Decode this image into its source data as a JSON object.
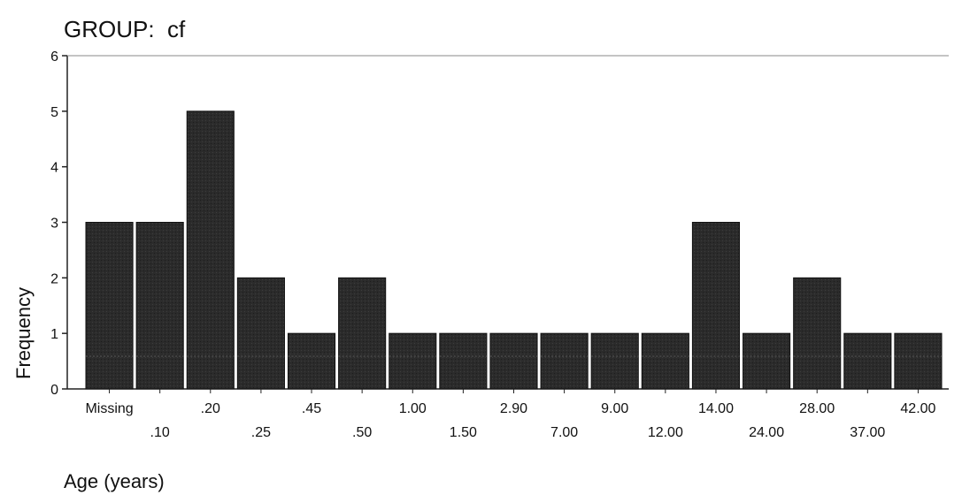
{
  "chart_data": {
    "type": "bar",
    "title": "GROUP:  cf",
    "xlabel": "Age (years)",
    "ylabel": "Frequency",
    "ylim": [
      0,
      6
    ],
    "yticks": [
      0,
      1,
      2,
      3,
      4,
      5,
      6
    ],
    "grid": false,
    "legend": "none",
    "categories": [
      "Missing",
      ".10",
      ".20",
      ".25",
      ".45",
      ".50",
      "1.00",
      "1.50",
      "2.90",
      "7.00",
      "9.00",
      "12.00",
      "14.00",
      "24.00",
      "28.00",
      "37.00",
      "42.00"
    ],
    "values": [
      3,
      3,
      5,
      2,
      1,
      2,
      1,
      1,
      1,
      1,
      1,
      1,
      3,
      1,
      2,
      1,
      1
    ],
    "bar_color": "#2b2b2b"
  }
}
